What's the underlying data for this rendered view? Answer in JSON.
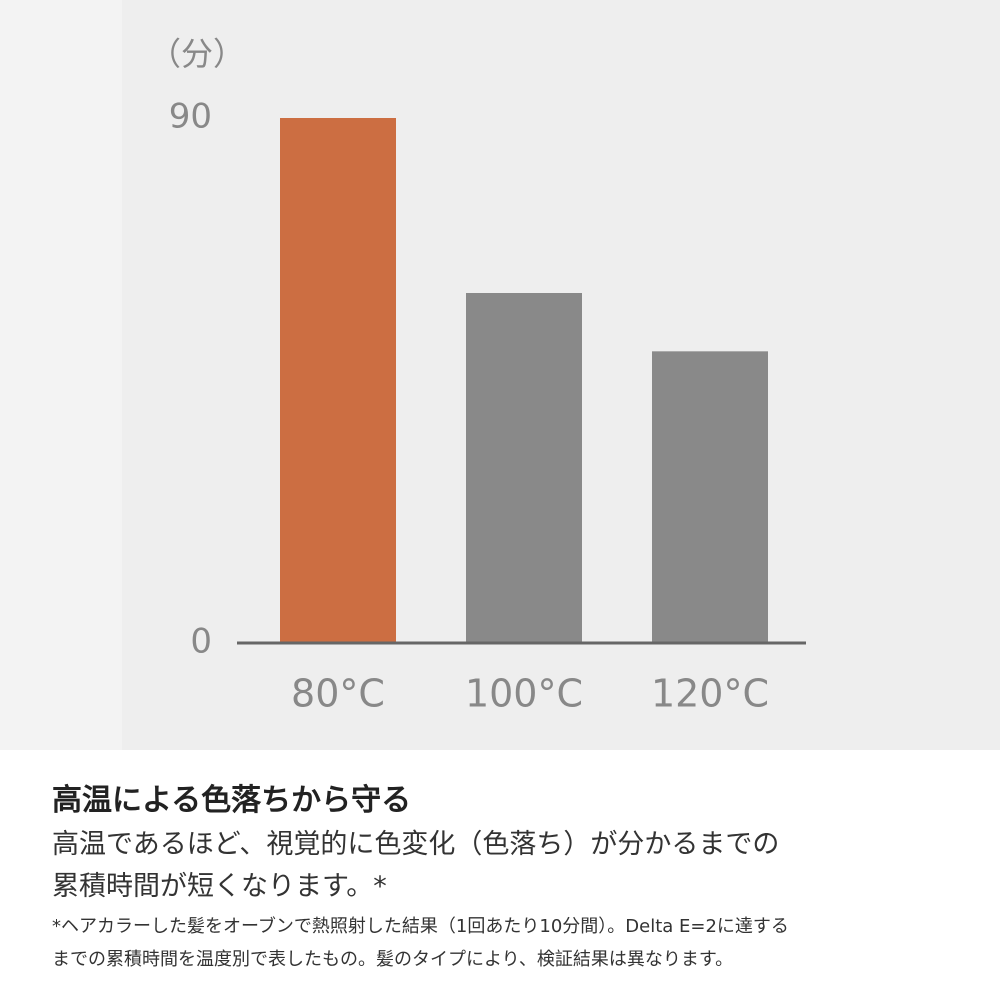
{
  "chart_data": {
    "type": "bar",
    "y_label": "（分）",
    "categories": [
      "80°C",
      "100°C",
      "120°C"
    ],
    "values": [
      90,
      60,
      50
    ],
    "colors": [
      "#cc6e42",
      "#898989",
      "#898989"
    ],
    "ylim": [
      0,
      90
    ],
    "yticks": [
      0,
      90
    ],
    "grid": false
  },
  "caption": {
    "heading": "高温による色落ちから守る",
    "body": [
      "高温であるほど、視覚的に色変化（色落ち）が分かるまでの",
      "累積時間が短くなります。*"
    ],
    "footnote": [
      "*ヘアカラーした髪をオーブンで熱照射した結果（1回あたり10分間）。Delta E=2に達する",
      "までの累積時間を温度別で表したもの。髪のタイプにより、検証結果は異なります。"
    ]
  }
}
